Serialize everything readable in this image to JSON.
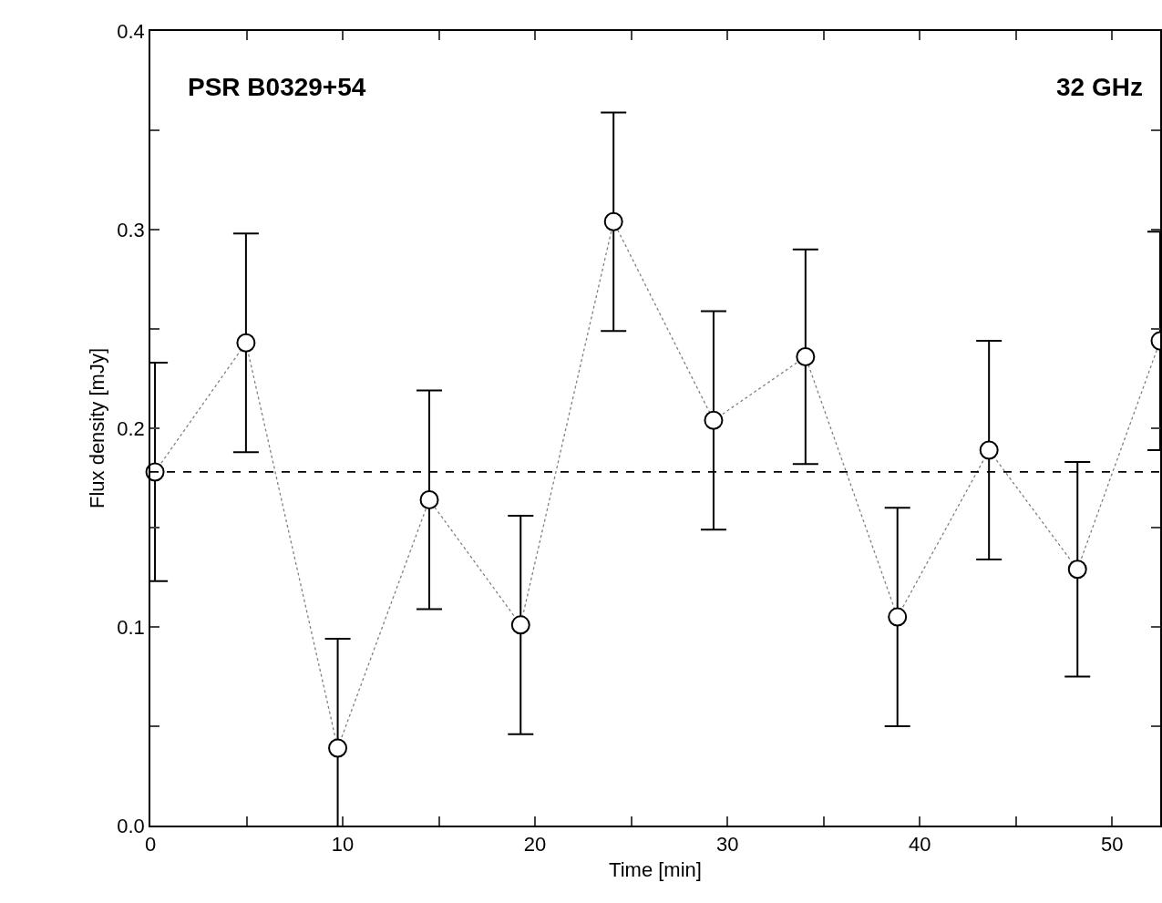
{
  "chart_data": {
    "type": "line",
    "xlabel": "Time [min]",
    "ylabel": "Flux density [mJy]",
    "annotations": [
      "PSR B0329+54",
      "32 GHz"
    ],
    "x": [
      0.24,
      4.97,
      9.74,
      14.5,
      19.25,
      24.08,
      29.28,
      34.06,
      38.84,
      43.6,
      48.2,
      52.5
    ],
    "series": [
      {
        "color": "#808080",
        "values": [
          0.178,
          0.243,
          0.039,
          0.164,
          0.101,
          0.304,
          0.204,
          0.236,
          0.105,
          0.189,
          0.129,
          0.244
        ],
        "errors": [
          0.055,
          0.055,
          0.055,
          0.055,
          0.055,
          0.055,
          0.055,
          0.054,
          0.055,
          0.055,
          0.054,
          0.055
        ]
      }
    ],
    "xlim": [
      0,
      52.5
    ],
    "xticks": [
      0,
      {
        "value": 5,
        "label": null
      },
      10,
      {
        "value": 15,
        "label": null
      },
      20,
      {
        "value": 25,
        "label": null
      },
      30,
      {
        "value": 35,
        "label": null
      },
      40,
      {
        "value": 45,
        "label": null
      },
      50
    ],
    "ylim": [
      0,
      0.4
    ],
    "yticks": [
      {
        "value": 0,
        "label": "0.0"
      },
      {
        "value": 0.05,
        "label": null
      },
      0.1,
      {
        "value": 0.15,
        "label": null
      },
      0.2,
      {
        "value": 0.25,
        "label": null
      },
      0.3,
      {
        "value": 0.35,
        "label": null
      },
      0.4
    ],
    "ref_lines": [
      {
        "axis": "y",
        "value": 0.178,
        "line_style": "dashed",
        "color": "#000000"
      }
    ],
    "marker": "circle",
    "line_style": "dotted",
    "grid": false
  }
}
